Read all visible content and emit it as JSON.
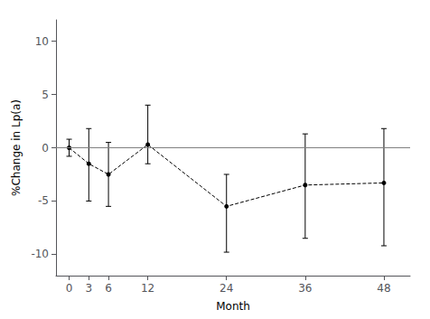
{
  "chart_data": {
    "type": "line",
    "x": [
      0,
      3,
      6,
      12,
      24,
      36,
      48
    ],
    "values": [
      0.0,
      -1.5,
      -2.5,
      0.3,
      -5.5,
      -3.5,
      -3.3
    ],
    "error_high": [
      0.8,
      1.8,
      0.5,
      4.0,
      -2.5,
      1.3,
      1.8
    ],
    "error_low": [
      -0.8,
      -5.0,
      -5.5,
      -1.5,
      -9.8,
      -8.5,
      -9.2
    ],
    "color": "#000000",
    "line_style": "dashed",
    "marker": "circle",
    "xlabel": "Month",
    "ylabel": "%Change in Lp(a)",
    "xlim": [
      -2,
      52
    ],
    "xticks": [
      0,
      3,
      6,
      12,
      24,
      36,
      48
    ],
    "ylim": [
      -12,
      12
    ],
    "yticks": [
      -10,
      -5,
      0,
      5,
      10
    ],
    "hline": {
      "value": 0,
      "color": "#808080"
    },
    "grid": false
  }
}
